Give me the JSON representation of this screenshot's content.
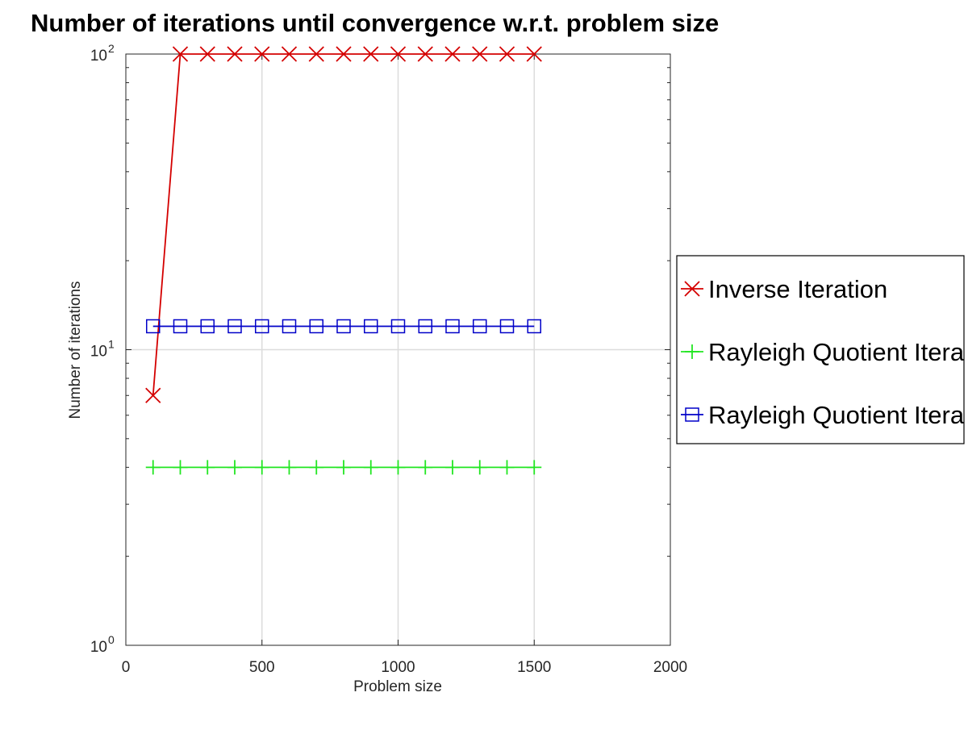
{
  "chart_data": {
    "type": "line",
    "title": "Number of iterations until convergence w.r.t. problem size",
    "xlabel": "Problem size",
    "ylabel": "Number of iterations",
    "xlim": [
      0,
      2000
    ],
    "ylim": [
      1,
      100
    ],
    "yscale": "log",
    "grid": true,
    "legend_position": "right, outside",
    "x_ticks": [
      {
        "value": 0,
        "label": "0"
      },
      {
        "value": 500,
        "label": "500"
      },
      {
        "value": 1000,
        "label": "1000"
      },
      {
        "value": 1500,
        "label": "1500"
      },
      {
        "value": 2000,
        "label": "2000"
      }
    ],
    "y_ticks": [
      {
        "value": 1,
        "base": "10",
        "exp": "0"
      },
      {
        "value": 10,
        "base": "10",
        "exp": "1"
      },
      {
        "value": 100,
        "base": "10",
        "exp": "2"
      }
    ],
    "x": [
      100,
      200,
      300,
      400,
      500,
      600,
      700,
      800,
      900,
      1000,
      1100,
      1200,
      1300,
      1400,
      1500
    ],
    "series": [
      {
        "name": "Inverse Iteration",
        "color": "#d40000",
        "marker": "x",
        "values": [
          7,
          100,
          100,
          100,
          100,
          100,
          100,
          100,
          100,
          100,
          100,
          100,
          100,
          100,
          100
        ]
      },
      {
        "name": "Rayleigh Quotient Itera",
        "color": "#22e622",
        "marker": "plus",
        "values": [
          4,
          4,
          4,
          4,
          4,
          4,
          4,
          4,
          4,
          4,
          4,
          4,
          4,
          4,
          4
        ]
      },
      {
        "name": "Rayleigh Quotient Itera",
        "color": "#0000c8",
        "marker": "square",
        "values": [
          12,
          12,
          12,
          12,
          12,
          12,
          12,
          12,
          12,
          12,
          12,
          12,
          12,
          12,
          12
        ]
      }
    ]
  }
}
